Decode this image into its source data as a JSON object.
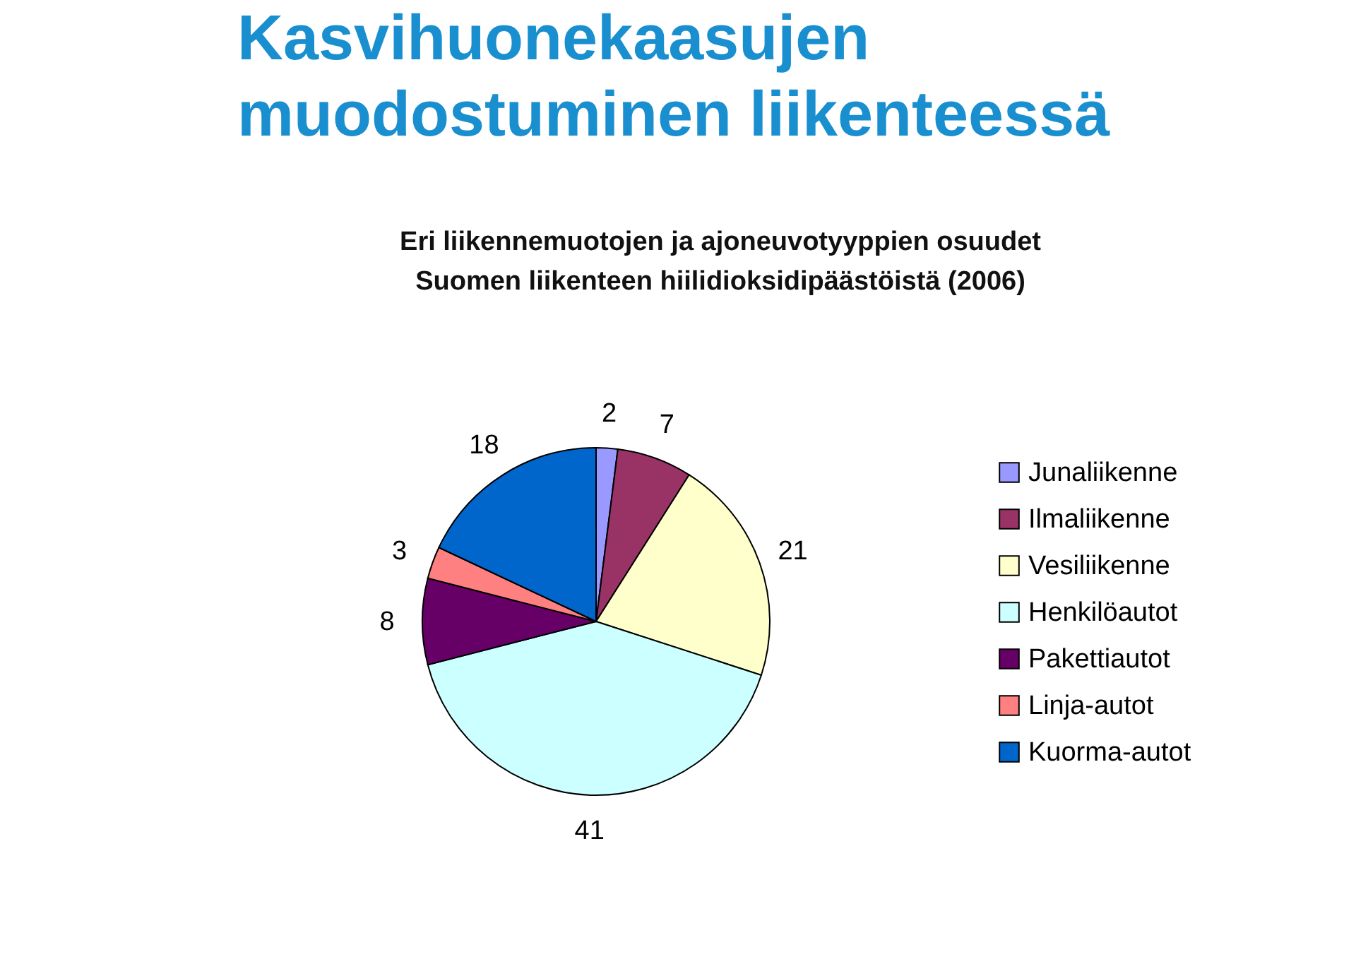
{
  "chart_data": {
    "type": "pie",
    "title": "Kasvihuonekaasujen muodostuminen liikenteessä",
    "subtitle": "Eri liikennemuotojen ja ajoneuvotyyppien osuudet\nSuomen liikenteen hiilidioksidipäästöistä (2006)",
    "categories": [
      "Junaliikenne",
      "Ilmaliikenne",
      "Vesiliikenne",
      "Henkilöautot",
      "Pakettiautot",
      "Linja-autot",
      "Kuorma-autot"
    ],
    "values": [
      2,
      7,
      21,
      41,
      8,
      3,
      18
    ],
    "colors": [
      "#9999ff",
      "#993366",
      "#ffffcc",
      "#ccffff",
      "#660066",
      "#ff8080",
      "#0066cc"
    ],
    "data_labels": true,
    "legend": "right"
  }
}
